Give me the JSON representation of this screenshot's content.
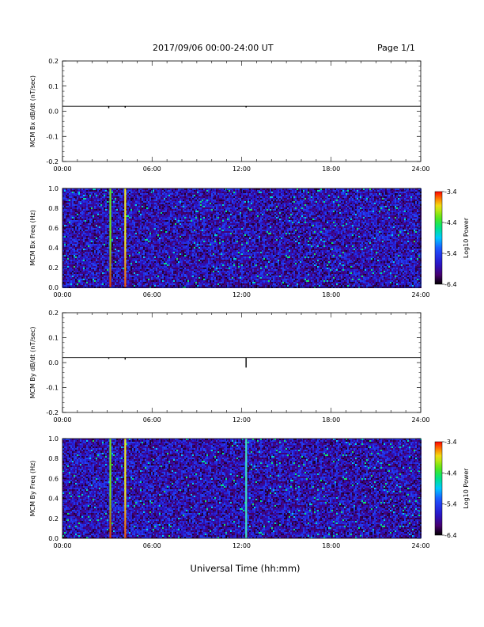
{
  "header": {
    "date_range": "2017/09/06  00:00-24:00 UT",
    "page": "Page 1/1"
  },
  "x_axis": {
    "title": "Universal Time (hh:mm)",
    "ticks": [
      "00:00",
      "06:00",
      "12:00",
      "18:00",
      "24:00"
    ],
    "range_hours": [
      0,
      24
    ]
  },
  "chart_data": [
    {
      "type": "line",
      "title": "",
      "ylabel": "MCM Bx dB/dt (nT/sec)",
      "ylim": [
        -0.2,
        0.2
      ],
      "yticks": [
        "0.2",
        "0.1",
        "0.0",
        "-0.1",
        "-0.2"
      ],
      "baseline": 0.02,
      "series_color": "#000000",
      "spikes": [
        {
          "x_hours": 3.1,
          "y_min": 0.012,
          "y_max": 0.02
        },
        {
          "x_hours": 4.2,
          "y_min": 0.014,
          "y_max": 0.02
        },
        {
          "x_hours": 12.3,
          "y_min": 0.015,
          "y_max": 0.02
        }
      ]
    },
    {
      "type": "heatmap",
      "ylabel": "MCM Bx Freq (Hz)",
      "ylim": [
        0.0,
        1.0
      ],
      "yticks": [
        "1.0",
        "0.8",
        "0.6",
        "0.4",
        "0.2",
        "0.0"
      ],
      "colorbar": {
        "label": "Log10 Power",
        "ticks": [
          "-3.4",
          "-4.4",
          "-5.4",
          "-6.4"
        ],
        "range": [
          -6.4,
          -3.4
        ]
      },
      "background_level": -5.8,
      "vertical_lines": [
        {
          "x_hours": 3.2,
          "top_color": "#6fe21a",
          "bottom_color": "#e03000"
        },
        {
          "x_hours": 4.2,
          "top_color": "#f0ea20",
          "bottom_color": "#f05010"
        }
      ]
    },
    {
      "type": "line",
      "title": "",
      "ylabel": "MCM By dB/dt (nT/sec)",
      "ylim": [
        -0.2,
        0.2
      ],
      "yticks": [
        "0.2",
        "0.1",
        "0.0",
        "-0.1",
        "-0.2"
      ],
      "baseline": 0.02,
      "series_color": "#000000",
      "spikes": [
        {
          "x_hours": 3.1,
          "y_min": 0.015,
          "y_max": 0.02
        },
        {
          "x_hours": 4.2,
          "y_min": 0.012,
          "y_max": 0.02
        },
        {
          "x_hours": 12.3,
          "y_min": -0.02,
          "y_max": 0.02
        }
      ]
    },
    {
      "type": "heatmap",
      "ylabel": "MCM By Freq (Hz)",
      "ylim": [
        0.0,
        1.0
      ],
      "yticks": [
        "1.0",
        "0.8",
        "0.6",
        "0.4",
        "0.2",
        "0.0"
      ],
      "colorbar": {
        "label": "Log10 Power",
        "ticks": [
          "-3.4",
          "-4.4",
          "-5.4",
          "-6.4"
        ],
        "range": [
          -6.4,
          -3.4
        ]
      },
      "background_level": -5.8,
      "vertical_lines": [
        {
          "x_hours": 3.2,
          "top_color": "#6fe21a",
          "bottom_color": "#e03000"
        },
        {
          "x_hours": 4.2,
          "top_color": "#f0ea20",
          "bottom_color": "#f05010"
        },
        {
          "x_hours": 12.3,
          "top_color": "#40e0c0",
          "bottom_color": "#40e0c0"
        }
      ]
    }
  ]
}
